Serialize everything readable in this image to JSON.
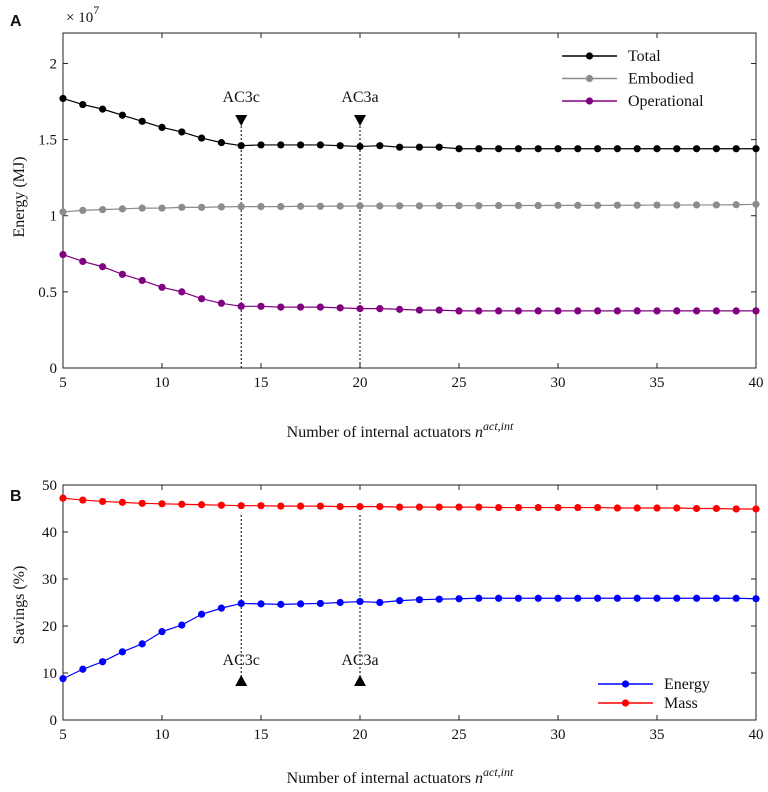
{
  "chart_data": [
    {
      "panel": "A",
      "type": "line",
      "xlabel": "Number of internal actuators",
      "xlabel_symbol": "n",
      "xlabel_superscript": "act,int",
      "ylabel": "Energy (MJ)",
      "y_multiplier": "× 10",
      "y_multiplier_exponent": "7",
      "xlim": [
        5,
        40
      ],
      "ylim": [
        0,
        2.2
      ],
      "x_ticks": [
        5,
        10,
        15,
        20,
        25,
        30,
        35,
        40
      ],
      "y_ticks": [
        0,
        0.5,
        1,
        1.5,
        2
      ],
      "y_tick_labels": [
        "0",
        "0.5",
        "1",
        "1.5",
        "2"
      ],
      "legend_position": "top-right",
      "x": [
        5,
        6,
        7,
        8,
        9,
        10,
        11,
        12,
        13,
        14,
        15,
        16,
        17,
        18,
        19,
        20,
        21,
        22,
        23,
        24,
        25,
        26,
        27,
        28,
        29,
        30,
        31,
        32,
        33,
        34,
        35,
        36,
        37,
        38,
        39,
        40
      ],
      "series": [
        {
          "name": "Total",
          "color": "#000000",
          "values": [
            1.77,
            1.73,
            1.7,
            1.66,
            1.62,
            1.58,
            1.55,
            1.51,
            1.48,
            1.46,
            1.465,
            1.465,
            1.465,
            1.465,
            1.46,
            1.455,
            1.46,
            1.45,
            1.45,
            1.45,
            1.44,
            1.44,
            1.44,
            1.44,
            1.44,
            1.44,
            1.44,
            1.44,
            1.44,
            1.44,
            1.44,
            1.44,
            1.44,
            1.44,
            1.44,
            1.44
          ]
        },
        {
          "name": "Embodied",
          "color": "#8c8c8c",
          "values": [
            1.025,
            1.035,
            1.04,
            1.045,
            1.05,
            1.05,
            1.055,
            1.055,
            1.058,
            1.06,
            1.06,
            1.06,
            1.062,
            1.062,
            1.063,
            1.064,
            1.064,
            1.065,
            1.065,
            1.066,
            1.066,
            1.066,
            1.067,
            1.067,
            1.067,
            1.068,
            1.068,
            1.068,
            1.069,
            1.069,
            1.07,
            1.07,
            1.071,
            1.071,
            1.072,
            1.075
          ]
        },
        {
          "name": "Operational",
          "color": "#800080",
          "values": [
            0.745,
            0.7,
            0.665,
            0.615,
            0.575,
            0.53,
            0.5,
            0.455,
            0.425,
            0.405,
            0.405,
            0.4,
            0.4,
            0.4,
            0.395,
            0.39,
            0.39,
            0.385,
            0.38,
            0.38,
            0.375,
            0.375,
            0.375,
            0.375,
            0.375,
            0.375,
            0.375,
            0.375,
            0.375,
            0.375,
            0.375,
            0.375,
            0.375,
            0.375,
            0.375,
            0.375
          ]
        }
      ],
      "annotations": [
        {
          "label": "AC3c",
          "x": 14,
          "arrow": "down"
        },
        {
          "label": "AC3a",
          "x": 20,
          "arrow": "down"
        }
      ]
    },
    {
      "panel": "B",
      "type": "line",
      "xlabel": "Number of internal actuators",
      "xlabel_symbol": "n",
      "xlabel_superscript": "act,int",
      "ylabel": "Savings (%)",
      "xlim": [
        5,
        40
      ],
      "ylim": [
        0,
        50
      ],
      "x_ticks": [
        5,
        10,
        15,
        20,
        25,
        30,
        35,
        40
      ],
      "y_ticks": [
        0,
        10,
        20,
        30,
        40,
        50
      ],
      "y_tick_labels": [
        "0",
        "10",
        "20",
        "30",
        "40",
        "50"
      ],
      "legend_position": "bottom-right",
      "x": [
        5,
        6,
        7,
        8,
        9,
        10,
        11,
        12,
        13,
        14,
        15,
        16,
        17,
        18,
        19,
        20,
        21,
        22,
        23,
        24,
        25,
        26,
        27,
        28,
        29,
        30,
        31,
        32,
        33,
        34,
        35,
        36,
        37,
        38,
        39,
        40
      ],
      "series": [
        {
          "name": "Energy",
          "color": "#0000ff",
          "values": [
            8.8,
            10.8,
            12.4,
            14.5,
            16.2,
            18.8,
            20.2,
            22.5,
            23.8,
            24.8,
            24.7,
            24.6,
            24.7,
            24.8,
            25.0,
            25.2,
            25.0,
            25.4,
            25.6,
            25.7,
            25.8,
            25.9,
            25.9,
            25.9,
            25.9,
            25.9,
            25.9,
            25.9,
            25.9,
            25.9,
            25.9,
            25.9,
            25.9,
            25.9,
            25.9,
            25.8
          ]
        },
        {
          "name": "Mass",
          "color": "#ff0000",
          "values": [
            47.2,
            46.8,
            46.5,
            46.3,
            46.1,
            46.0,
            45.9,
            45.8,
            45.7,
            45.6,
            45.6,
            45.5,
            45.5,
            45.5,
            45.4,
            45.4,
            45.4,
            45.3,
            45.3,
            45.3,
            45.3,
            45.3,
            45.2,
            45.2,
            45.2,
            45.2,
            45.2,
            45.2,
            45.1,
            45.1,
            45.1,
            45.1,
            45.0,
            45.0,
            44.9,
            44.9
          ]
        }
      ],
      "annotations": [
        {
          "label": "AC3c",
          "x": 14,
          "arrow": "up"
        },
        {
          "label": "AC3a",
          "x": 20,
          "arrow": "up"
        }
      ]
    }
  ]
}
